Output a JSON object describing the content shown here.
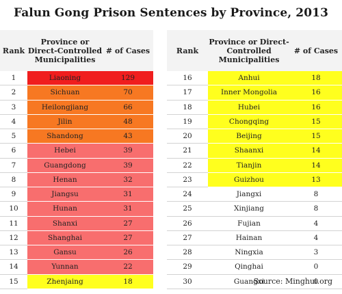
{
  "title": "Falun Gong Prison Sentences by Province, 2013",
  "headers": {
    "rank": "Rank",
    "province": "Province or Direct-Controlled Municipalities",
    "cases": "# of Cases"
  },
  "colors": {
    "red": "#f01e1e",
    "orange": "#f77822",
    "pink": "#f86e6e",
    "yellow": "#ffff1e",
    "none": ""
  },
  "left_rows": [
    {
      "rank": "1",
      "province": "Liaoning",
      "cases": "129",
      "color": "red"
    },
    {
      "rank": "2",
      "province": "Sichuan",
      "cases": "70",
      "color": "orange"
    },
    {
      "rank": "3",
      "province": "Heilongjiang",
      "cases": "66",
      "color": "orange"
    },
    {
      "rank": "4",
      "province": "Jilin",
      "cases": "48",
      "color": "orange"
    },
    {
      "rank": "5",
      "province": "Shandong",
      "cases": "43",
      "color": "orange"
    },
    {
      "rank": "6",
      "province": "Hebei",
      "cases": "39",
      "color": "pink"
    },
    {
      "rank": "7",
      "province": "Guangdong",
      "cases": "39",
      "color": "pink"
    },
    {
      "rank": "8",
      "province": "Henan",
      "cases": "32",
      "color": "pink"
    },
    {
      "rank": "9",
      "province": "Jiangsu",
      "cases": "31",
      "color": "pink"
    },
    {
      "rank": "10",
      "province": "Hunan",
      "cases": "31",
      "color": "pink"
    },
    {
      "rank": "11",
      "province": "Shanxi",
      "cases": "27",
      "color": "pink"
    },
    {
      "rank": "12",
      "province": "Shanghai",
      "cases": "27",
      "color": "pink"
    },
    {
      "rank": "13",
      "province": "Gansu",
      "cases": "26",
      "color": "pink"
    },
    {
      "rank": "14",
      "province": "Yunnan",
      "cases": "22",
      "color": "pink"
    },
    {
      "rank": "15",
      "province": "Zhenjaing",
      "cases": "18",
      "color": "yellow"
    }
  ],
  "right_rows": [
    {
      "rank": "16",
      "province": "Anhui",
      "cases": "18",
      "color": "yellow"
    },
    {
      "rank": "17",
      "province": "Inner Mongolia",
      "cases": "16",
      "color": "yellow"
    },
    {
      "rank": "18",
      "province": "Hubei",
      "cases": "16",
      "color": "yellow"
    },
    {
      "rank": "19",
      "province": "Chongqing",
      "cases": "15",
      "color": "yellow"
    },
    {
      "rank": "20",
      "province": "Beijing",
      "cases": "15",
      "color": "yellow"
    },
    {
      "rank": "21",
      "province": "Shaanxi",
      "cases": "14",
      "color": "yellow"
    },
    {
      "rank": "22",
      "province": "Tianjin",
      "cases": "14",
      "color": "yellow"
    },
    {
      "rank": "23",
      "province": "Guizhou",
      "cases": "13",
      "color": "yellow"
    },
    {
      "rank": "24",
      "province": "Jiangxi",
      "cases": "8",
      "color": "none"
    },
    {
      "rank": "25",
      "province": "Xinjiang",
      "cases": "8",
      "color": "none"
    },
    {
      "rank": "26",
      "province": "Fujian",
      "cases": "4",
      "color": "none"
    },
    {
      "rank": "27",
      "province": "Hainan",
      "cases": "4",
      "color": "none"
    },
    {
      "rank": "28",
      "province": "Ningxia",
      "cases": "3",
      "color": "none"
    },
    {
      "rank": "29",
      "province": "Qinghai",
      "cases": "0",
      "color": "none"
    },
    {
      "rank": "30",
      "province": "Guangxi",
      "cases": "0",
      "color": "none"
    }
  ],
  "source": "Source: Minghui.org"
}
